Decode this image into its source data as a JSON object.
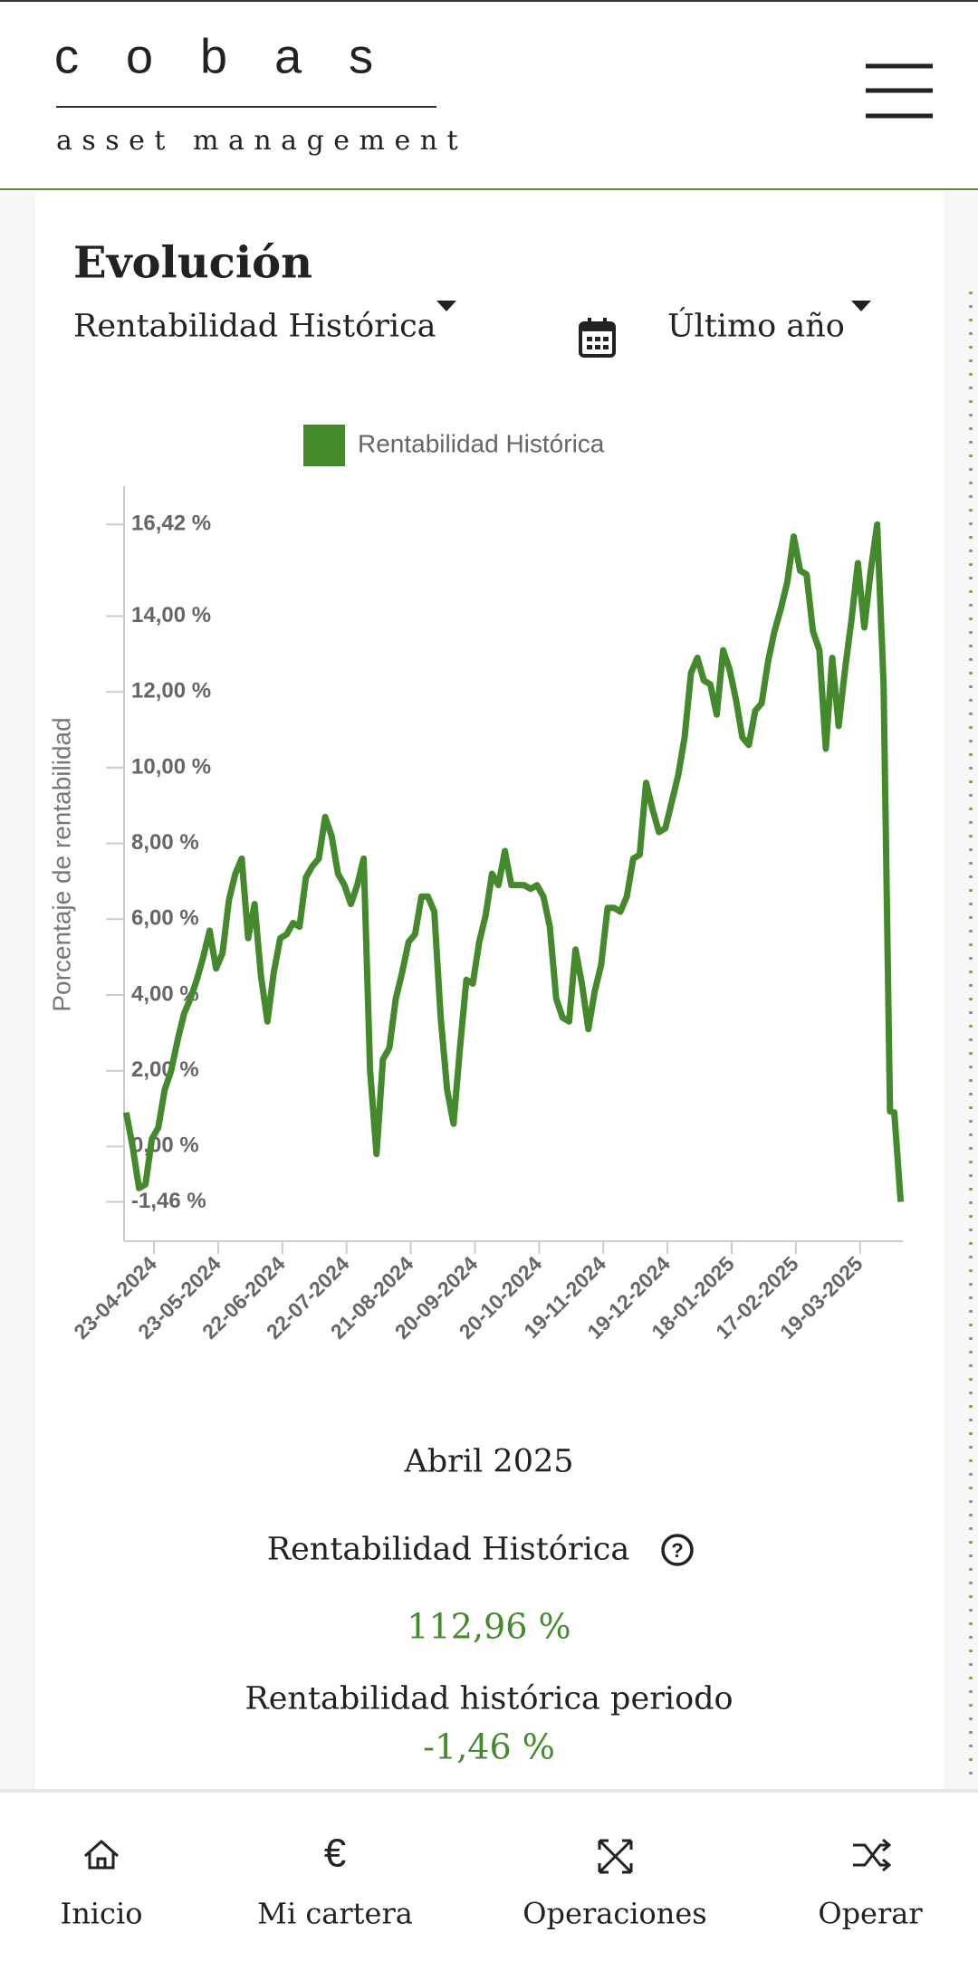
{
  "header": {
    "logo": "cobas",
    "tagline": "asset management"
  },
  "section": {
    "title": "Evolución",
    "metric_select": "Rentabilidad Histórica",
    "period_select": "Último año"
  },
  "chart_data": {
    "type": "line",
    "y_label": "Porcentaje de rentabilidad",
    "x": [
      "10-04-2024",
      "13-04-2024",
      "16-04-2024",
      "19-04-2024",
      "22-04-2024",
      "25-04-2024",
      "28-04-2024",
      "01-05-2024",
      "04-05-2024",
      "07-05-2024",
      "10-05-2024",
      "13-05-2024",
      "16-05-2024",
      "19-05-2024",
      "22-05-2024",
      "25-05-2024",
      "28-05-2024",
      "31-05-2024",
      "03-06-2024",
      "06-06-2024",
      "09-06-2024",
      "12-06-2024",
      "15-06-2024",
      "18-06-2024",
      "21-06-2024",
      "24-06-2024",
      "27-06-2024",
      "30-06-2024",
      "03-07-2024",
      "06-07-2024",
      "09-07-2024",
      "12-07-2024",
      "15-07-2024",
      "18-07-2024",
      "21-07-2024",
      "24-07-2024",
      "27-07-2024",
      "30-07-2024",
      "02-08-2024",
      "05-08-2024",
      "08-08-2024",
      "11-08-2024",
      "14-08-2024",
      "17-08-2024",
      "20-08-2024",
      "23-08-2024",
      "26-08-2024",
      "29-08-2024",
      "01-09-2024",
      "04-09-2024",
      "07-09-2024",
      "10-09-2024",
      "13-09-2024",
      "16-09-2024",
      "19-09-2024",
      "22-09-2024",
      "25-09-2024",
      "28-09-2024",
      "01-10-2024",
      "04-10-2024",
      "07-10-2024",
      "10-10-2024",
      "13-10-2024",
      "16-10-2024",
      "19-10-2024",
      "22-10-2024",
      "25-10-2024",
      "28-10-2024",
      "31-10-2024",
      "03-11-2024",
      "06-11-2024",
      "09-11-2024",
      "12-11-2024",
      "15-11-2024",
      "18-11-2024",
      "21-11-2024",
      "24-11-2024",
      "27-11-2024",
      "30-11-2024",
      "03-12-2024",
      "06-12-2024",
      "09-12-2024",
      "12-12-2024",
      "15-12-2024",
      "18-12-2024",
      "21-12-2024",
      "24-12-2024",
      "27-12-2024",
      "30-12-2024",
      "02-01-2025",
      "05-01-2025",
      "08-01-2025",
      "11-01-2025",
      "14-01-2025",
      "17-01-2025",
      "20-01-2025",
      "23-01-2025",
      "26-01-2025",
      "29-01-2025",
      "01-02-2025",
      "04-02-2025",
      "07-02-2025",
      "10-02-2025",
      "13-02-2025",
      "16-02-2025",
      "19-02-2025",
      "22-02-2025",
      "25-02-2025",
      "28-02-2025",
      "03-03-2025",
      "06-03-2025",
      "09-03-2025",
      "12-03-2025",
      "15-03-2025",
      "18-03-2025",
      "21-03-2025",
      "24-03-2025",
      "27-03-2025",
      "30-03-2025",
      "02-04-2025",
      "04-04-2025",
      "07-04-2025"
    ],
    "series": [
      {
        "name": "Rentabilidad Histórica",
        "color": "#448a2c",
        "values": [
          0.9,
          0.0,
          -1.1,
          -1.0,
          0.2,
          0.5,
          1.5,
          2.0,
          2.8,
          3.5,
          3.9,
          4.4,
          5.0,
          5.7,
          4.7,
          5.1,
          6.5,
          7.2,
          7.6,
          5.5,
          6.4,
          4.5,
          3.3,
          4.6,
          5.5,
          5.6,
          5.9,
          5.8,
          7.1,
          7.4,
          7.6,
          8.7,
          8.2,
          7.2,
          6.9,
          6.4,
          6.9,
          7.6,
          2.0,
          -0.2,
          2.3,
          2.6,
          3.9,
          4.6,
          5.4,
          5.6,
          6.6,
          6.6,
          6.2,
          3.4,
          1.5,
          0.6,
          2.6,
          4.4,
          4.3,
          5.4,
          6.1,
          7.2,
          6.9,
          7.8,
          6.9,
          6.9,
          6.9,
          6.8,
          6.9,
          6.6,
          5.8,
          3.9,
          3.4,
          3.3,
          5.2,
          4.3,
          3.1,
          4.1,
          4.8,
          6.3,
          6.3,
          6.2,
          6.6,
          7.6,
          7.7,
          9.6,
          8.9,
          8.3,
          8.4,
          9.1,
          9.8,
          10.8,
          12.5,
          12.9,
          12.3,
          12.2,
          11.4,
          13.1,
          12.6,
          11.8,
          10.8,
          10.6,
          11.5,
          11.7,
          12.8,
          13.6,
          14.2,
          14.9,
          16.1,
          15.2,
          15.1,
          13.6,
          13.1,
          10.5,
          12.9,
          11.1,
          12.6,
          13.9,
          15.4,
          13.7,
          15.2,
          16.42,
          12.2,
          0.93,
          0.9,
          -1.46
        ]
      }
    ],
    "xlim": [
      "09-04-2024",
      "08-04-2025"
    ],
    "xticks": [
      "23-04-2024",
      "23-05-2024",
      "22-06-2024",
      "22-07-2024",
      "21-08-2024",
      "20-09-2024",
      "20-10-2024",
      "19-11-2024",
      "19-12-2024",
      "18-01-2025",
      "17-02-2025",
      "19-03-2025"
    ],
    "ylim": [
      -2.5,
      17.43
    ],
    "yticks": [
      {
        "value": -1.46,
        "label": "-1,46 %"
      },
      {
        "value": 0,
        "label": "0,00 %"
      },
      {
        "value": 2,
        "label": "2,00 %"
      },
      {
        "value": 4,
        "label": "4,00 %"
      },
      {
        "value": 6,
        "label": "6,00 %"
      },
      {
        "value": 8,
        "label": "8,00 %"
      },
      {
        "value": 10,
        "label": "10,00 %"
      },
      {
        "value": 12,
        "label": "12,00 %"
      },
      {
        "value": 14,
        "label": "14,00 %"
      },
      {
        "value": 16.42,
        "label": "16,42 %"
      }
    ],
    "legend": "top"
  },
  "summary": {
    "period": "Abril 2025",
    "metric_label": "Rentabilidad Histórica",
    "metric_value": "112,96 %",
    "period_label": "Rentabilidad histórica periodo",
    "period_value": "-1,46 %"
  },
  "nav": [
    {
      "label": "Inicio"
    },
    {
      "label": "Mi cartera"
    },
    {
      "label": "Operaciones"
    },
    {
      "label": "Operar"
    }
  ]
}
